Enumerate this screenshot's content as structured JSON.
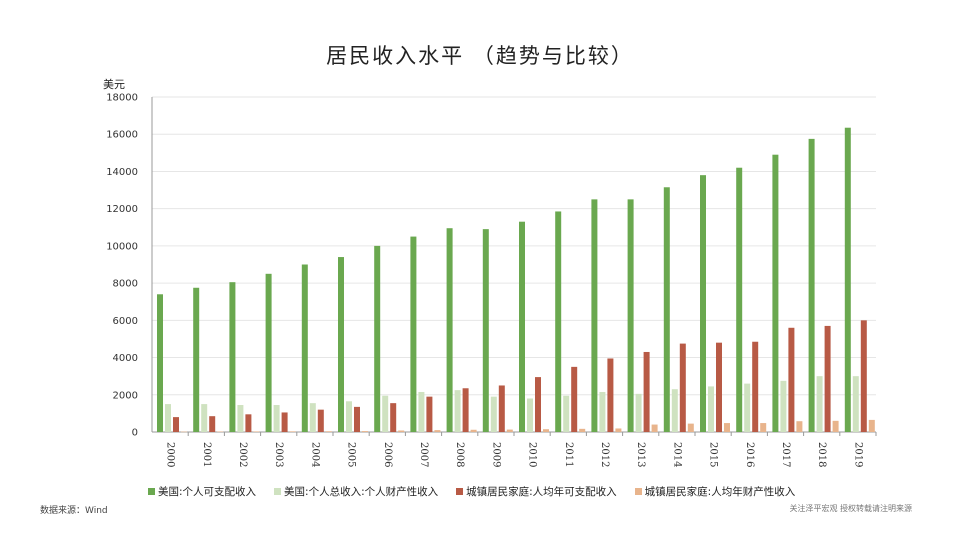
{
  "title": "居民收入水平 （趋势与比较）",
  "source": "数据来源：Wind",
  "note": "关注泽平宏观 授权转载请注明来源",
  "colors": {
    "us_disposable": "#6aa84f",
    "us_property": "#cfe2c0",
    "cn_disposable": "#b85a45",
    "cn_property": "#e8b48c"
  },
  "chart_data": {
    "type": "bar",
    "ylabel": "美元",
    "ylim": [
      0,
      18000
    ],
    "yticks": [
      0,
      2000,
      4000,
      6000,
      8000,
      10000,
      12000,
      14000,
      16000,
      18000
    ],
    "grid": true,
    "legend_position": "bottom",
    "categories": [
      "2000",
      "2001",
      "2002",
      "2003",
      "2004",
      "2005",
      "2006",
      "2007",
      "2008",
      "2009",
      "2010",
      "2011",
      "2012",
      "2013",
      "2014",
      "2015",
      "2016",
      "2017",
      "2018",
      "2019"
    ],
    "series": [
      {
        "name": "美国:个人可支配收入",
        "color": "#6aa84f",
        "values": [
          7400,
          7750,
          8050,
          8500,
          9000,
          9400,
          10000,
          10500,
          10950,
          10900,
          11300,
          11850,
          12500,
          12500,
          13150,
          13800,
          14200,
          14900,
          15750,
          16350
        ]
      },
      {
        "name": "美国:个人总收入:个人财产性收入",
        "color": "#cfe2c0",
        "values": [
          1500,
          1500,
          1450,
          1450,
          1550,
          1650,
          1950,
          2150,
          2250,
          1900,
          1800,
          1950,
          2150,
          2050,
          2300,
          2450,
          2600,
          2750,
          3000,
          3000
        ]
      },
      {
        "name": "城镇居民家庭:人均年可支配收入",
        "color": "#b85a45",
        "values": [
          800,
          850,
          950,
          1050,
          1200,
          1350,
          1550,
          1900,
          2350,
          2500,
          2950,
          3500,
          3950,
          4300,
          4750,
          4800,
          4850,
          5600,
          5700,
          6000
        ]
      },
      {
        "name": "城镇居民家庭:人均年财产性收入",
        "color": "#e8b48c",
        "values": [
          20,
          25,
          30,
          35,
          40,
          50,
          80,
          100,
          120,
          130,
          150,
          170,
          190,
          400,
          450,
          480,
          480,
          580,
          600,
          650
        ]
      }
    ]
  }
}
